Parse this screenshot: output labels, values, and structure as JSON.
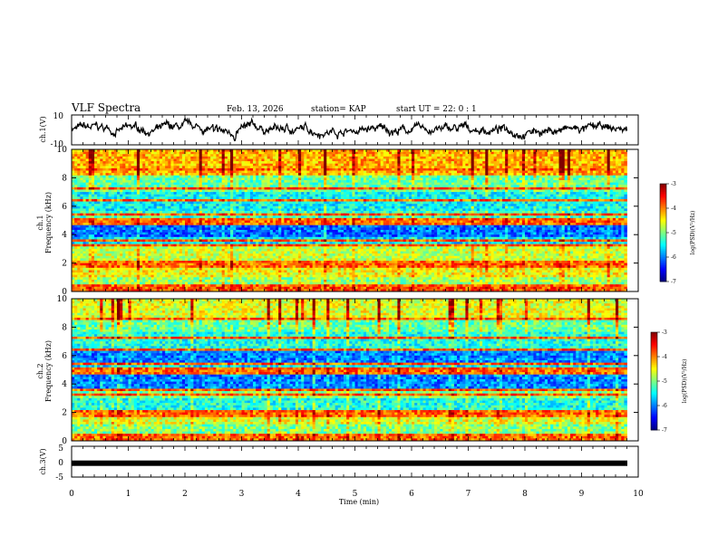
{
  "header": {
    "title": "VLF Spectra",
    "date": "Feb. 13, 2026",
    "station": "station= KAP",
    "start": "start  UT =   22: 0  : 1"
  },
  "chart_data": [
    {
      "type": "line",
      "name": "ch1-voltage",
      "ylabel": "ch.1(V)",
      "ylim": [
        -10,
        10
      ],
      "yticks": [
        "10",
        "-10"
      ],
      "xlim": [
        0,
        10
      ],
      "description_series": "noisy waveform oscillating roughly between -10 and 10 V over 0–9.8 min"
    },
    {
      "type": "heatmap",
      "name": "ch1-spectrogram",
      "ylabel": "ch.1\nFrequency (kHz)",
      "ylabel_top": "ch.1",
      "ylabel_bottom": "Frequency (kHz)",
      "ylim": [
        0,
        10
      ],
      "yticks": [
        "0",
        "2",
        "4",
        "6",
        "8",
        "10"
      ],
      "xlim": [
        0,
        9.8
      ],
      "colorbar": {
        "label": "log(PSD)(V²/Hz)",
        "range": [
          -7,
          -3
        ],
        "ticks": [
          "-3",
          "-4",
          "-5",
          "-6",
          "-7"
        ]
      },
      "bands_log_psd": [
        {
          "f": [
            0,
            0.3
          ],
          "v": -3.8
        },
        {
          "f": [
            0.3,
            1.0
          ],
          "v": -4.9
        },
        {
          "f": [
            1.0,
            1.6
          ],
          "v": -4.5
        },
        {
          "f": [
            1.6,
            2.2
          ],
          "v": -5.2
        },
        {
          "f": [
            2.2,
            3.2
          ],
          "v": -4.7
        },
        {
          "f": [
            3.2,
            3.8
          ],
          "v": -5.6
        },
        {
          "f": [
            3.8,
            5.0
          ],
          "v": -6.1
        },
        {
          "f": [
            5.0,
            5.6
          ],
          "v": -5.3
        },
        {
          "f": [
            5.6,
            7.0
          ],
          "v": -5.5
        },
        {
          "f": [
            7.0,
            8.2
          ],
          "v": -5.1
        },
        {
          "f": [
            8.2,
            10
          ],
          "v": -4.2
        }
      ]
    },
    {
      "type": "heatmap",
      "name": "ch2-spectrogram",
      "ylabel_top": "ch.2",
      "ylabel_bottom": "Frequency (kHz)",
      "ylim": [
        0,
        10
      ],
      "yticks": [
        "0",
        "2",
        "4",
        "6",
        "8",
        "10"
      ],
      "xlim": [
        0,
        9.8
      ],
      "colorbar": {
        "label": "log(PSD)(V²/Hz)",
        "range": [
          -7,
          -3
        ],
        "ticks": [
          "-3",
          "-4",
          "-5",
          "-6",
          "-7"
        ]
      },
      "bands_log_psd": [
        {
          "f": [
            0,
            0.3
          ],
          "v": -3.9
        },
        {
          "f": [
            0.3,
            1.2
          ],
          "v": -5.0
        },
        {
          "f": [
            1.2,
            2.2
          ],
          "v": -4.6
        },
        {
          "f": [
            2.2,
            3.0
          ],
          "v": -5.4
        },
        {
          "f": [
            3.0,
            3.6
          ],
          "v": -5.0
        },
        {
          "f": [
            3.6,
            4.6
          ],
          "v": -6.0
        },
        {
          "f": [
            4.6,
            5.4
          ],
          "v": -5.6
        },
        {
          "f": [
            5.4,
            6.4
          ],
          "v": -6.0
        },
        {
          "f": [
            6.4,
            7.6
          ],
          "v": -5.4
        },
        {
          "f": [
            7.6,
            8.6
          ],
          "v": -5.1
        },
        {
          "f": [
            8.6,
            10
          ],
          "v": -4.6
        }
      ]
    },
    {
      "type": "line",
      "name": "ch3-voltage",
      "ylabel": "ch.3(V)",
      "ylim": [
        -5,
        5
      ],
      "yticks": [
        "5",
        "0",
        "-5"
      ],
      "xlim": [
        0,
        10
      ],
      "constant_level": -0.5
    }
  ],
  "xaxis": {
    "label": "Time (min)",
    "ticks": [
      "0",
      "1",
      "2",
      "3",
      "4",
      "5",
      "6",
      "7",
      "8",
      "9",
      "10"
    ],
    "range": [
      0,
      10
    ]
  }
}
